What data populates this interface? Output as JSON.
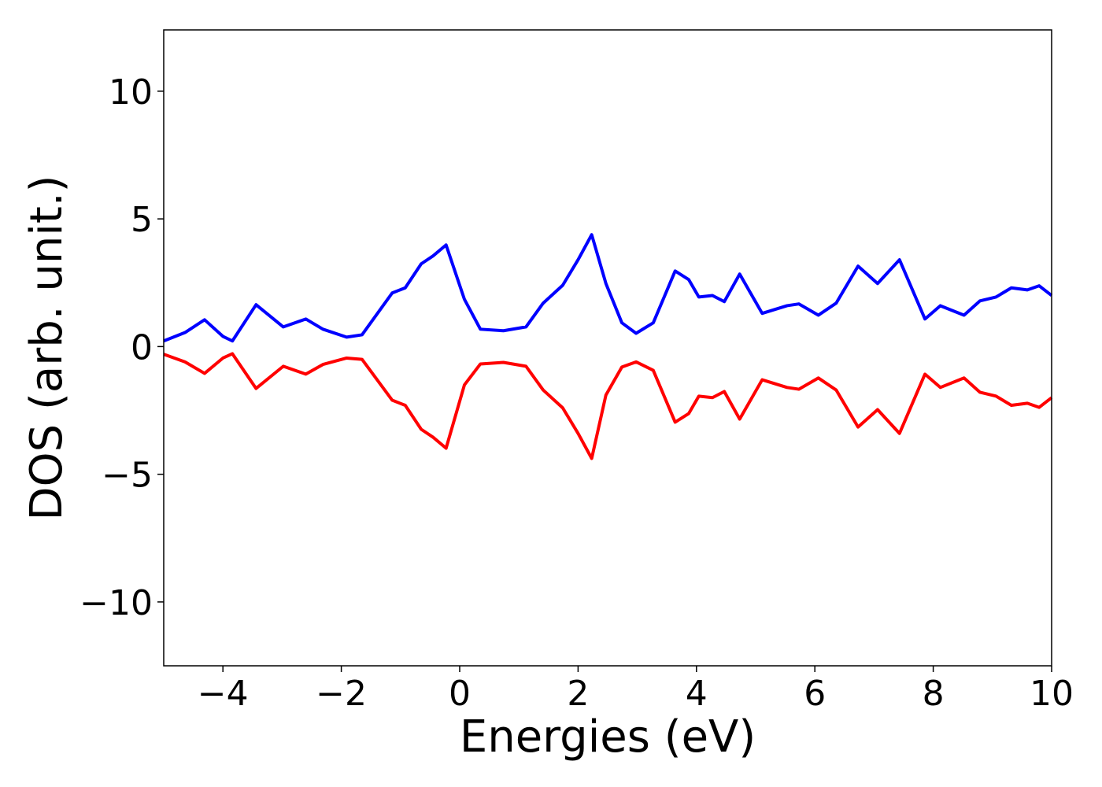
{
  "chart_data": {
    "type": "line",
    "xlabel": "Energies (eV)",
    "ylabel": "DOS (arb. unit.)",
    "x": [
      -5,
      -4.64,
      -4.31,
      -4.0,
      -3.84,
      -3.44,
      -2.98,
      -2.6,
      -2.31,
      -1.91,
      -1.65,
      -1.14,
      -0.92,
      -0.65,
      -0.45,
      -0.23,
      0.08,
      0.35,
      0.74,
      1.12,
      1.41,
      1.74,
      2.0,
      2.23,
      2.47,
      2.74,
      2.98,
      3.27,
      3.64,
      3.87,
      4.04,
      4.27,
      4.47,
      4.73,
      5.11,
      5.53,
      5.73,
      6.06,
      6.36,
      6.73,
      7.06,
      7.43,
      7.86,
      8.12,
      8.52,
      8.79,
      9.06,
      9.32,
      9.59,
      9.79,
      10
    ],
    "series": [
      {
        "color": "#0000ff",
        "values": [
          0.22,
          0.55,
          1.05,
          0.4,
          0.22,
          1.64,
          0.77,
          1.08,
          0.68,
          0.37,
          0.46,
          2.1,
          2.3,
          3.24,
          3.55,
          3.98,
          1.85,
          0.68,
          0.62,
          0.77,
          1.7,
          2.4,
          3.4,
          4.38,
          2.47,
          0.93,
          0.52,
          0.93,
          2.96,
          2.62,
          1.94,
          2.0,
          1.76,
          2.84,
          1.3,
          1.6,
          1.67,
          1.23,
          1.7,
          3.15,
          2.47,
          3.4,
          1.08,
          1.6,
          1.23,
          1.79,
          1.94,
          2.3,
          2.22,
          2.38,
          2.0
        ]
      },
      {
        "color": "#ff0000",
        "values": [
          -0.3,
          -0.6,
          -1.05,
          -0.45,
          -0.28,
          -1.64,
          -0.77,
          -1.08,
          -0.7,
          -0.45,
          -0.5,
          -2.1,
          -2.3,
          -3.24,
          -3.55,
          -3.98,
          -1.5,
          -0.68,
          -0.62,
          -0.77,
          -1.7,
          -2.4,
          -3.4,
          -4.38,
          -1.9,
          -0.8,
          -0.6,
          -0.93,
          -2.96,
          -2.62,
          -1.94,
          -2.0,
          -1.76,
          -2.84,
          -1.3,
          -1.6,
          -1.67,
          -1.23,
          -1.7,
          -3.15,
          -2.47,
          -3.4,
          -1.08,
          -1.6,
          -1.23,
          -1.79,
          -1.94,
          -2.3,
          -2.22,
          -2.38,
          -2.0
        ]
      }
    ],
    "xlim": [
      -5,
      10
    ],
    "xticks": [
      {
        "value": -4,
        "label": "−4"
      },
      {
        "value": -2,
        "label": "−2"
      },
      0,
      2,
      4,
      6,
      8,
      10
    ],
    "ylim": [
      -12.5,
      12.4
    ],
    "yticks": [
      {
        "value": -10,
        "label": "−10"
      },
      {
        "value": -5,
        "label": "−5"
      },
      0,
      5,
      10
    ]
  }
}
